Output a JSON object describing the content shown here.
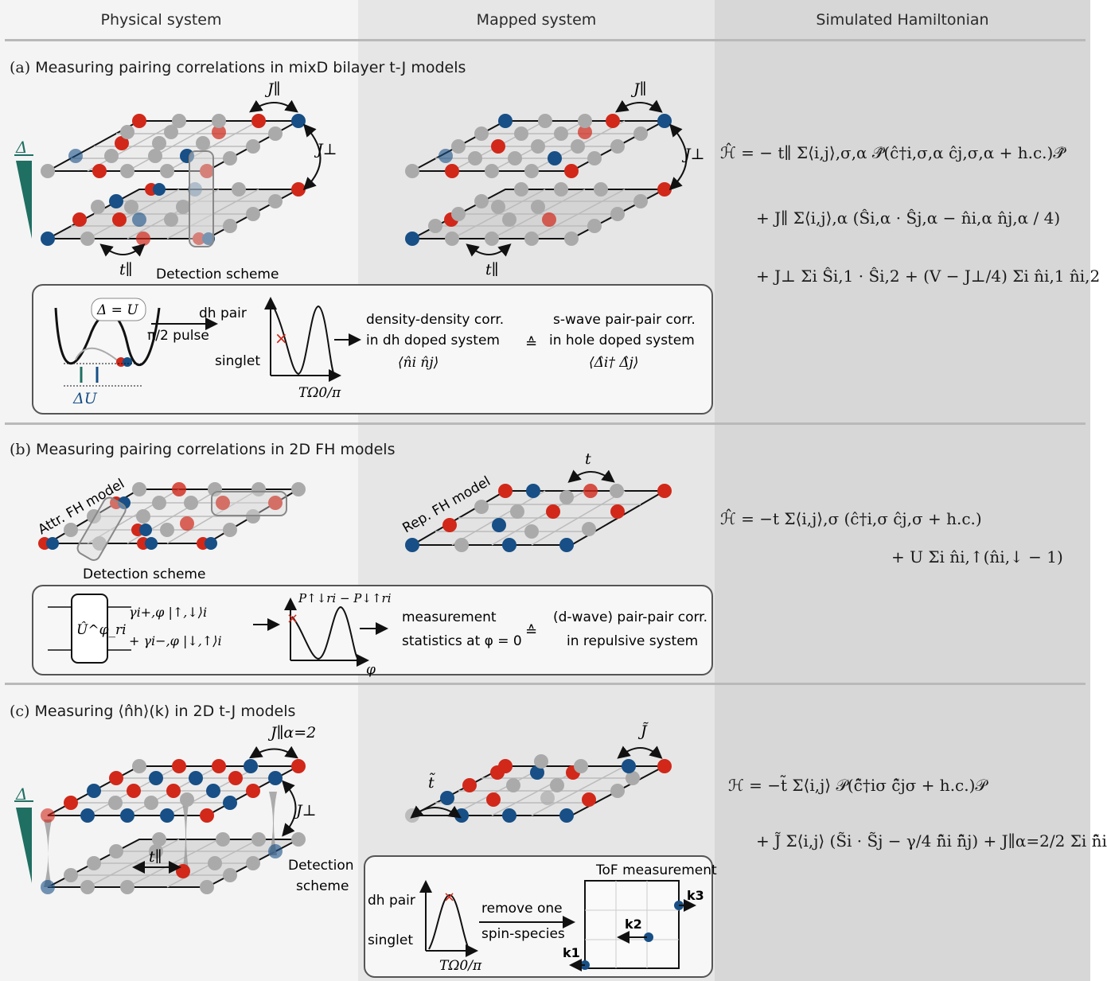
{
  "headers": {
    "physical": "Physical system",
    "mapped": "Mapped system",
    "hamiltonian": "Simulated Hamiltonian"
  },
  "section_a": {
    "letter": "(a)",
    "title": "Measuring pairing correlations in mixD bilayer t-J models",
    "detection_label": "Detection scheme",
    "j_par": "J∥",
    "j_perp": "J⊥",
    "t_par": "t∥",
    "delta": "Δ",
    "delta_eq_u": "Δ = U",
    "delta_u": "ΔU",
    "pulse": "π/2 pulse",
    "dh_pair": "dh pair",
    "singlet": "singlet",
    "axis_x": "TΩ0/π",
    "dd_corr": "density-density corr.",
    "dh_doped": "in dh doped system",
    "nn_corr": "⟨n̂i n̂j⟩",
    "swave": "s-wave pair-pair corr.",
    "hole_doped": "in hole doped system",
    "pair_corr": "⟨Δ̂i† Δ̂j⟩",
    "ham": [
      "ℋ̂ = − t∥ Σ⟨i,j⟩,σ,α 𝒫̂(ĉ†i,σ,α ĉj,σ,α + h.c.)𝒫̂",
      "+ J∥ Σ⟨i,j⟩,α (Ŝi,α · Ŝj,α − n̂i,α n̂j,α / 4)",
      "+ J⊥ Σi Ŝi,1 · Ŝi,2 + (V − J⊥/4) Σi n̂i,1 n̂i,2"
    ]
  },
  "section_b": {
    "letter": "(b)",
    "title": "Measuring pairing correlations in 2D FH models",
    "attr_label": "Attr. FH model",
    "rep_label": "Rep. FH model",
    "detection_label": "Detection scheme",
    "t": "t",
    "gate": "Û^φ_ri",
    "state1": "γi+,φ |↑,↓⟩i",
    "state2": "+ γi−,φ |↓,↑⟩i",
    "plot_label": "P↑↓ri − P↓↑ri",
    "axis_x": "φ",
    "meas1": "measurement",
    "meas2": "statistics at φ = 0",
    "dwave1": "(d-wave) pair-pair corr.",
    "dwave2": "in repulsive system",
    "ham": [
      "ℋ̂ = −t Σ⟨i,j⟩,σ (ĉ†i,σ ĉj,σ + h.c.)",
      "+ U Σi n̂i,↑(n̂i,↓ − 1)"
    ]
  },
  "section_c": {
    "letter": "(c)",
    "title": "Measuring ⟨n̂h⟩(k) in 2D t-J models",
    "j_par_alpha": "J∥α=2",
    "j_perp": "J⊥",
    "t_par": "t∥",
    "delta": "Δ",
    "t_tilde": "t̃",
    "j_tilde": "J̃",
    "detection_label1": "Detection",
    "detection_label2": "scheme",
    "dh_pair": "dh pair",
    "singlet": "singlet",
    "axis_x": "TΩ0/π",
    "remove1": "remove one",
    "remove2": "spin-species",
    "tof": "ToF measurement",
    "k1": "k1",
    "k2": "k2",
    "k3": "k3",
    "ham": [
      "ℋ = −t̃ Σ⟨i,j⟩ 𝒫(ĉ̃†iσ ĉ̃jσ + h.c.)𝒫",
      "+ J̃ Σ⟨i,j⟩ (S̃i · S̃j − γ/4 n̂̃i n̂̃j) + J∥α=2/2 Σi n̂̃i"
    ]
  },
  "colors": {
    "red": "#d1281a",
    "blue": "#174f86",
    "gray": "#aaaaaa",
    "teal": "#1f6f62"
  }
}
